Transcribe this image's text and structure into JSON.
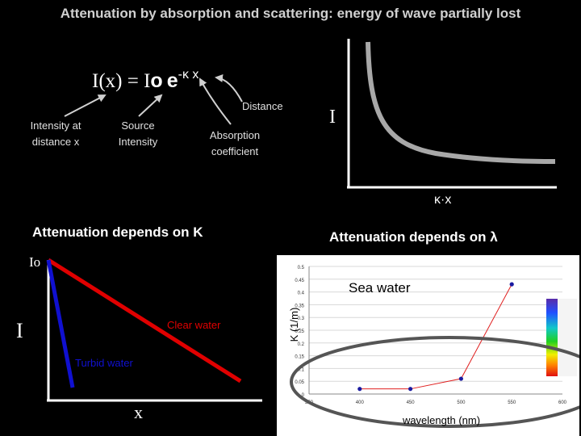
{
  "title": "Attenuation by absorption and scattering: energy of wave partially lost",
  "formula": {
    "lhs": "I(x) = I",
    "sub": "o",
    "base": "e",
    "exponent": "-κ x"
  },
  "annotations": {
    "distance": "Distance",
    "intensity_at": "Intensity at distance x",
    "source": "Source Intensity",
    "absorption": "Absorption coefficient"
  },
  "decay_plot": {
    "ylabel": "I",
    "xlabel": "κ·x"
  },
  "left_panel": {
    "heading": "Attenuation depends on K",
    "y_top_label": "Io",
    "y_label": "I",
    "x_label": "x",
    "clear_label": "Clear water",
    "turbid_label": "Turbid water",
    "colors": {
      "clear": "#e00000",
      "turbid": "#1010d0"
    }
  },
  "right_panel": {
    "heading": "Attenuation depends on λ",
    "series_label": "Sea water",
    "ylabel": "K (1/m)",
    "xlabel": "wavelength (nm)"
  },
  "chart_data": {
    "type": "line",
    "title": "Sea water",
    "xlabel": "wavelength (nm)",
    "ylabel": "K (1/m)",
    "x": [
      400,
      450,
      500,
      550
    ],
    "series": [
      {
        "name": "Sea water",
        "values": [
          0.02,
          0.02,
          0.06,
          0.43
        ]
      }
    ],
    "xlim": [
      350,
      600
    ],
    "ylim": [
      0,
      0.5
    ],
    "x_ticks": [
      "350",
      "400",
      "450",
      "500",
      "550",
      "600"
    ],
    "y_ticks": [
      "0",
      "0.05",
      "0.1",
      "0.15",
      "0.2",
      "0.25",
      "0.3",
      "0.35",
      "0.4",
      "0.45",
      "0.5"
    ],
    "grid": true
  }
}
